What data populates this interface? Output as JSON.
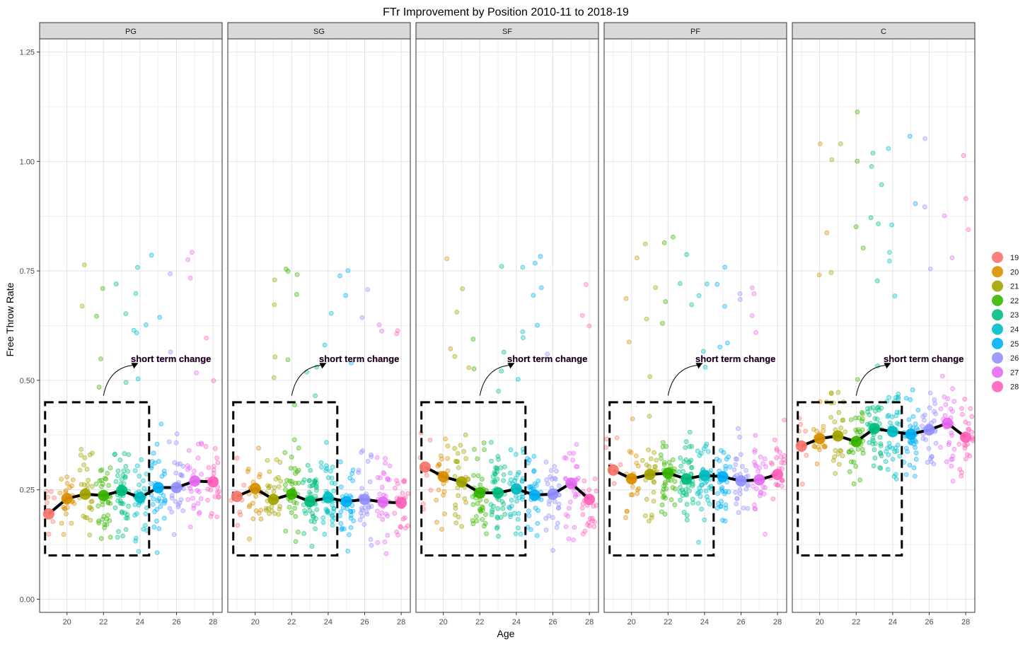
{
  "chart_data": {
    "type": "scatter",
    "title": "FTr Improvement by Position 2010-11 to 2018-19",
    "xlabel": "Age",
    "ylabel": "Free Throw Rate",
    "xlim": [
      18.5,
      28.5
    ],
    "ylim": [
      -0.03,
      1.28
    ],
    "x_ticks": [
      20,
      22,
      24,
      26,
      28
    ],
    "y_ticks": [
      0.0,
      0.25,
      0.5,
      0.75,
      1.0,
      1.25
    ],
    "y_tick_labels": [
      "0.00",
      "0.25",
      "0.50",
      "0.75",
      "1.00",
      "1.25"
    ],
    "grid": true,
    "legend": {
      "placement": "right",
      "entries": [
        "19",
        "20",
        "21",
        "22",
        "23",
        "24",
        "25",
        "26",
        "27",
        "28"
      ]
    },
    "annotation": {
      "text": "short term change",
      "box_x": [
        18.8,
        24.5
      ],
      "box_y": [
        0.1,
        0.45
      ]
    },
    "colors": [
      "#F8766D",
      "#D89000",
      "#A3A500",
      "#39B600",
      "#00BF7D",
      "#00BFC4",
      "#00B0F6",
      "#9590FF",
      "#E76BF3",
      "#FF62BC"
    ],
    "facets": [
      {
        "name": "PG",
        "ages": [
          19,
          20,
          21,
          22,
          23,
          24,
          25,
          26,
          27,
          28
        ],
        "means": [
          0.195,
          0.23,
          0.24,
          0.237,
          0.248,
          0.232,
          0.255,
          0.255,
          0.27,
          0.268
        ]
      },
      {
        "name": "SG",
        "ages": [
          19,
          20,
          21,
          22,
          23,
          24,
          25,
          26,
          27,
          28
        ],
        "means": [
          0.235,
          0.253,
          0.228,
          0.24,
          0.223,
          0.232,
          0.223,
          0.228,
          0.222,
          0.22
        ]
      },
      {
        "name": "SF",
        "ages": [
          19,
          20,
          21,
          22,
          23,
          24,
          25,
          26,
          27,
          28
        ],
        "means": [
          0.302,
          0.28,
          0.268,
          0.243,
          0.243,
          0.252,
          0.238,
          0.24,
          0.265,
          0.228
        ]
      },
      {
        "name": "PF",
        "ages": [
          19,
          20,
          21,
          22,
          23,
          24,
          25,
          26,
          27,
          28
        ],
        "means": [
          0.295,
          0.275,
          0.285,
          0.288,
          0.275,
          0.283,
          0.28,
          0.27,
          0.273,
          0.285
        ]
      },
      {
        "name": "C",
        "ages": [
          19,
          20,
          21,
          22,
          23,
          24,
          25,
          26,
          27,
          28
        ],
        "means": [
          0.35,
          0.367,
          0.373,
          0.36,
          0.39,
          0.383,
          0.377,
          0.387,
          0.402,
          0.37
        ]
      }
    ]
  }
}
